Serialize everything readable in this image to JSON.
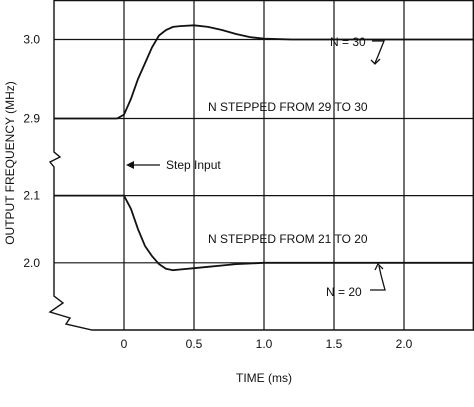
{
  "chart_data": {
    "type": "line",
    "title": "",
    "xlabel": "TIME (ms)",
    "ylabel": "OUTPUT FREQUENCY (MHz)",
    "xlim": [
      -0.5,
      2.5
    ],
    "x_ticks": [
      "0",
      "0.5",
      "1.0",
      "1.5",
      "2.0"
    ],
    "grid": true,
    "panels": [
      {
        "name": "upper",
        "ylim": [
          2.85,
          3.05
        ],
        "y_ticks": [
          "3.0",
          "2.9"
        ],
        "series": [
          {
            "x": [
              -0.5,
              -0.05,
              0.0,
              0.05,
              0.1,
              0.15,
              0.2,
              0.25,
              0.3,
              0.35,
              0.4,
              0.5,
              0.6,
              0.7,
              0.8,
              0.9,
              1.0,
              1.2,
              1.5,
              2.0,
              2.5
            ],
            "values": [
              2.9,
              2.9,
              2.905,
              2.925,
              2.95,
              2.97,
              2.99,
              3.005,
              3.012,
              3.016,
              3.017,
              3.018,
              3.016,
              3.012,
              3.007,
              3.003,
              3.001,
              3.0,
              3.0,
              3.0,
              3.0
            ]
          }
        ]
      },
      {
        "name": "lower",
        "ylim": [
          1.9,
          2.15
        ],
        "y_ticks": [
          "2.1",
          "2.0"
        ],
        "series": [
          {
            "x": [
              -0.5,
              -0.05,
              0.0,
              0.05,
              0.1,
              0.15,
              0.2,
              0.25,
              0.3,
              0.35,
              0.4,
              0.5,
              0.6,
              0.7,
              0.8,
              0.9,
              1.0,
              1.2,
              1.5,
              2.0,
              2.5
            ],
            "values": [
              2.1,
              2.1,
              2.1,
              2.08,
              2.05,
              2.025,
              2.01,
              1.998,
              1.991,
              1.989,
              1.99,
              1.992,
              1.994,
              1.996,
              1.998,
              1.999,
              2.0,
              2.0,
              2.0,
              2.0,
              2.0
            ]
          }
        ]
      }
    ],
    "annotations": {
      "n30": "N = 30",
      "stepped_up": "N STEPPED FROM 29 TO 30",
      "step_input": "Step Input",
      "stepped_down": "N STEPPED FROM 21 TO 20",
      "n20": "N = 20"
    }
  }
}
